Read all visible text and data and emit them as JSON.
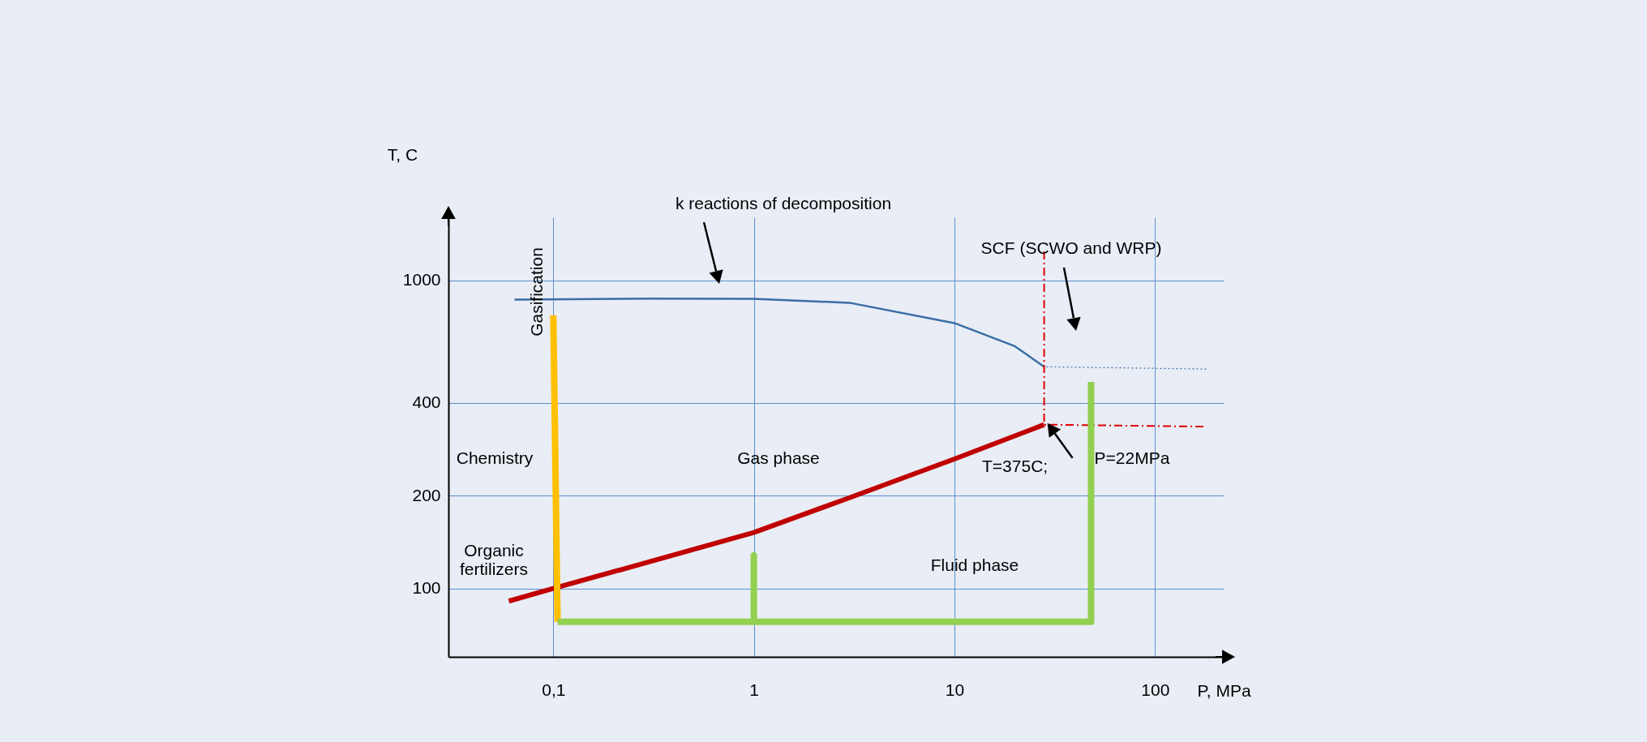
{
  "chart_data": {
    "type": "line",
    "xlabel": "P, MPa",
    "ylabel": "T, C",
    "log": "xy",
    "grid": true,
    "xlim": [
      0.03,
      220
    ],
    "xticks": [
      {
        "value": 0.1,
        "label": "0,1"
      },
      1,
      10,
      100
    ],
    "ylim": [
      60,
      1600
    ],
    "yticks": [
      100,
      200,
      400,
      1000
    ],
    "series": [
      {
        "color": "#c00000",
        "x": [
          0.06,
          0.1,
          0.3,
          1,
          3,
          10,
          28
        ],
        "values": [
          91,
          100,
          122,
          152,
          197,
          263,
          340
        ]
      },
      {
        "color": "#3a6ea5",
        "x": [
          0.064,
          0.3,
          1,
          3,
          10,
          20,
          28
        ],
        "values": [
          865,
          872,
          870,
          845,
          726,
          611,
          524
        ]
      },
      {
        "color": "#3a6ea5",
        "line_style": "dotted",
        "x": [
          28,
          180
        ],
        "values": [
          524,
          515
        ]
      },
      {
        "color": "#e00000",
        "line_style": "dashed",
        "x": [
          28,
          28,
          180
        ],
        "values": [
          1240,
          340,
          335
        ]
      },
      {
        "color": "#ffc000",
        "x": [
          0.1,
          0.105
        ],
        "values": [
          770,
          78
        ]
      },
      {
        "color": "#92d050",
        "x": [
          0.105,
          1,
          1,
          1,
          48,
          48
        ],
        "values": [
          78,
          78,
          128,
          78,
          78,
          468
        ]
      }
    ],
    "annotations": [
      "k reactions of decomposition",
      "SCF (SCWO and WRP)",
      {
        "text": "T=375C;",
        "x": 28,
        "y": 340
      },
      "P=22MPa",
      "Gasification",
      "Chemistry",
      "Gas phase",
      "Organic\nfertilizers",
      "Fluid phase"
    ]
  }
}
